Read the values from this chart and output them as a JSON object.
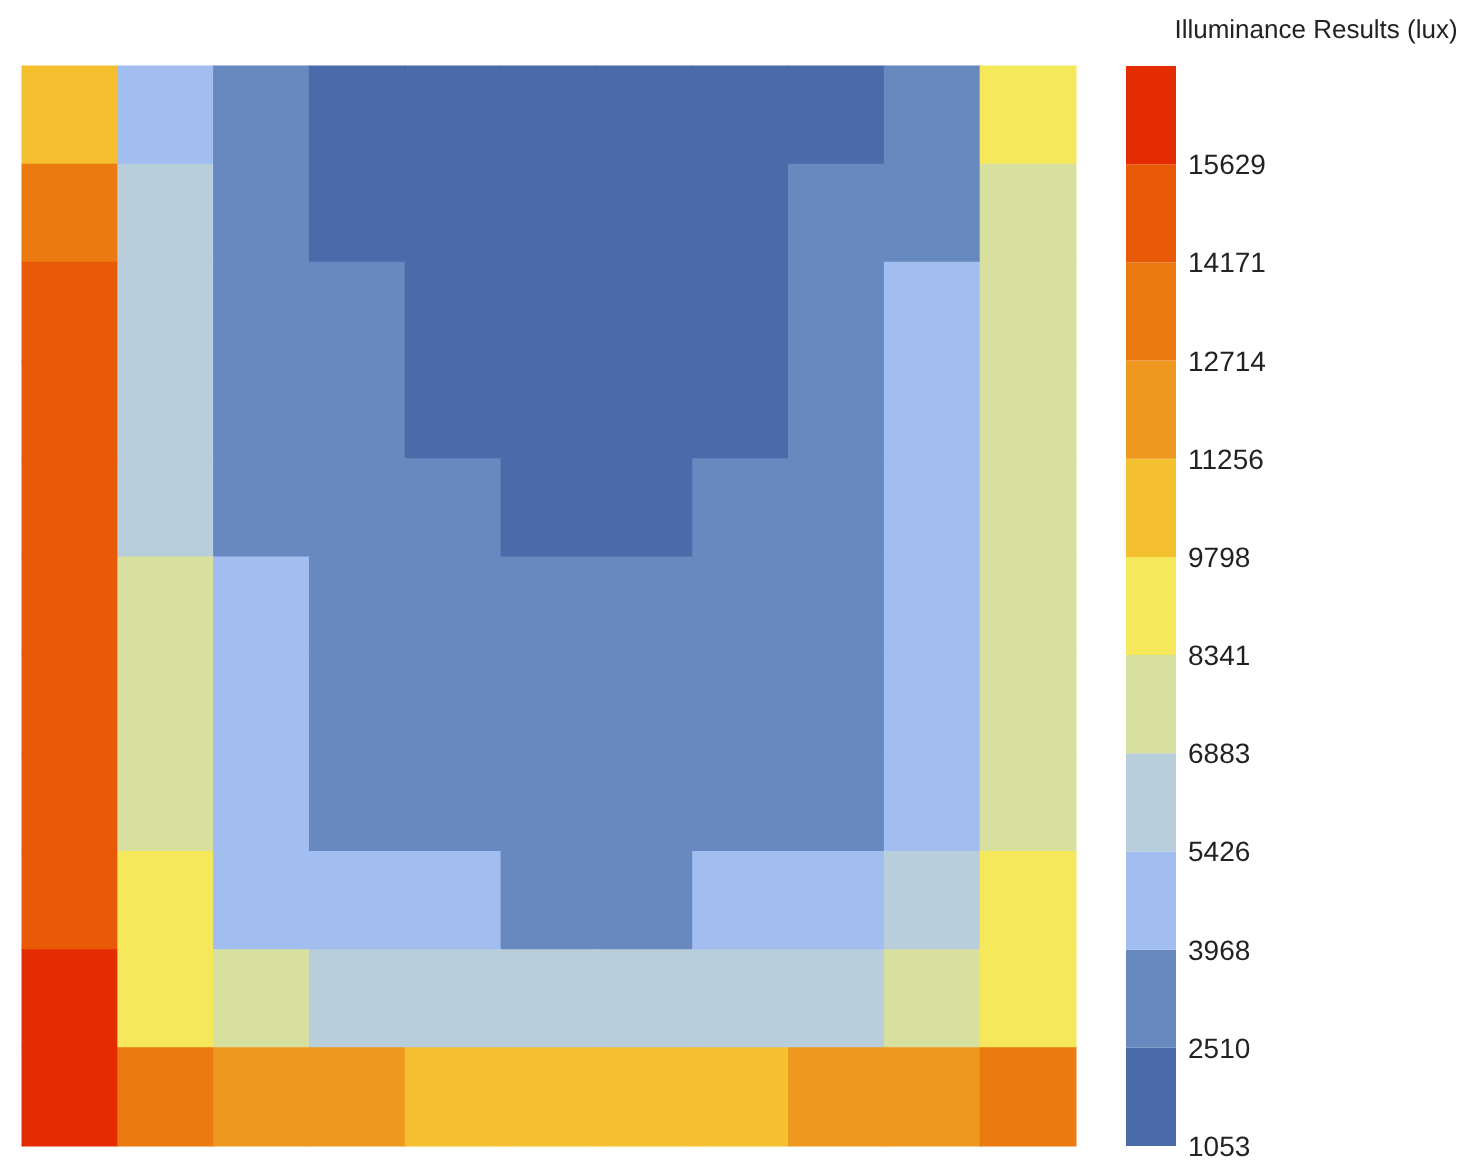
{
  "chart_data": {
    "type": "heatmap",
    "clabel": "Illuminance Results (lux)",
    "categories": [
      null,
      null,
      null,
      null,
      null,
      null,
      null,
      null,
      null,
      null,
      null
    ],
    "y_categories": [
      null,
      null,
      null,
      null,
      null,
      null,
      null,
      null,
      null,
      null,
      null
    ],
    "clim": [
      1053,
      17087
    ],
    "cticks": [
      1053,
      2510,
      3968,
      5426,
      6883,
      8341,
      9798,
      11256,
      12714,
      14171,
      15629
    ],
    "colors": [
      "#4a6aaa",
      "#6888c0",
      "#a2bef0",
      "#b8cedb",
      "#d8e0a0",
      "#f5e85a",
      "#f5c030",
      "#ef9820",
      "#eb7a10",
      "#e85a08",
      "#e42c00"
    ],
    "cells": [
      [
        9900,
        4500,
        3000,
        2300,
        1300,
        1150,
        1100,
        1200,
        2200,
        3500,
        8800
      ],
      [
        13300,
        6000,
        3200,
        2500,
        1700,
        1300,
        1400,
        1900,
        2700,
        3800,
        7200
      ],
      [
        14600,
        6300,
        3500,
        2700,
        2000,
        1800,
        1800,
        2400,
        3000,
        4200,
        7200
      ],
      [
        14700,
        6600,
        3800,
        2800,
        2300,
        2100,
        2100,
        2500,
        3100,
        4400,
        7200
      ],
      [
        14800,
        6700,
        3900,
        3000,
        2700,
        2300,
        2300,
        2700,
        3300,
        4500,
        7100
      ],
      [
        14900,
        6900,
        4100,
        3200,
        2800,
        2600,
        2600,
        2900,
        3400,
        4600,
        7200
      ],
      [
        15000,
        7300,
        4300,
        3400,
        3000,
        2900,
        2900,
        3000,
        3700,
        4700,
        7400
      ],
      [
        15200,
        7900,
        4800,
        3800,
        3300,
        3200,
        3200,
        3400,
        3900,
        5000,
        8000
      ],
      [
        15400,
        8600,
        5400,
        4600,
        4100,
        3900,
        3900,
        4000,
        4600,
        5700,
        8600
      ],
      [
        16200,
        9000,
        7400,
        6200,
        6000,
        5800,
        5800,
        6000,
        6400,
        8000,
        9200
      ],
      [
        16000,
        13000,
        11800,
        11500,
        11100,
        10800,
        10800,
        11100,
        11500,
        12300,
        12800
      ]
    ]
  }
}
